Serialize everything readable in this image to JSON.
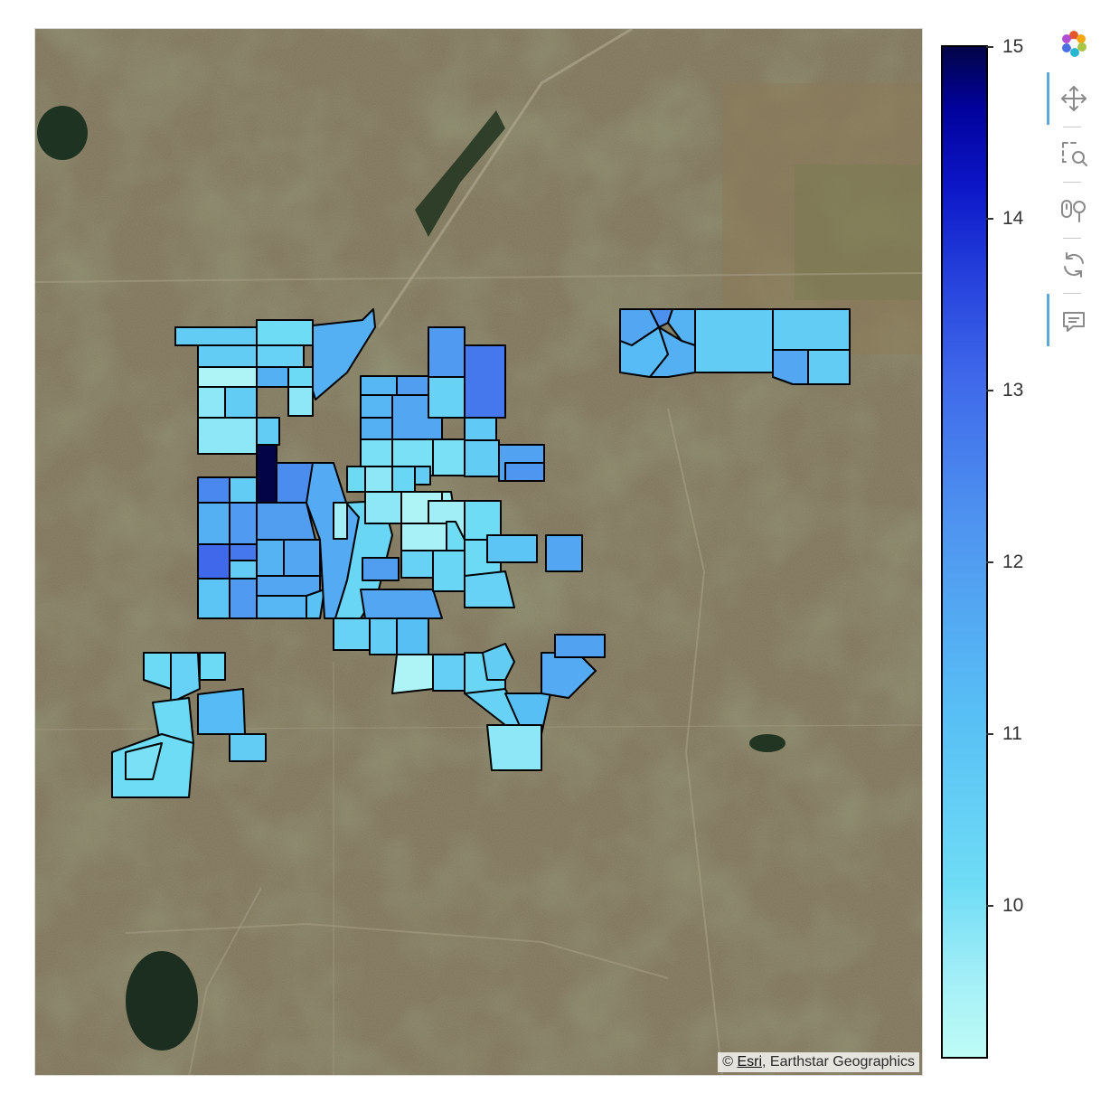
{
  "map": {
    "basemap": "satellite imagery",
    "attribution_prefix": "© ",
    "attribution_link": "Esri",
    "attribution_suffix": ", Earthstar Geographics"
  },
  "colorbar": {
    "ticks": [
      "15",
      "14",
      "13",
      "12",
      "11",
      "10"
    ],
    "tick_values": [
      15,
      14,
      13,
      12,
      11,
      10
    ],
    "range": [
      9.1,
      15.0
    ],
    "colors": {
      "low": "#bffcf6",
      "mid": "#4f96f0",
      "high": "#030448"
    }
  },
  "choropleth": {
    "outline_color": "#000000",
    "value_range": [
      9.1,
      15.0
    ]
  },
  "toolbar": {
    "tools": [
      {
        "name": "bokeh-logo",
        "active": false
      },
      {
        "name": "pan",
        "active": true
      },
      {
        "name": "box-zoom",
        "active": false
      },
      {
        "name": "wheel-zoom",
        "active": false
      },
      {
        "name": "reset",
        "active": false
      },
      {
        "name": "hover",
        "active": true
      }
    ]
  }
}
